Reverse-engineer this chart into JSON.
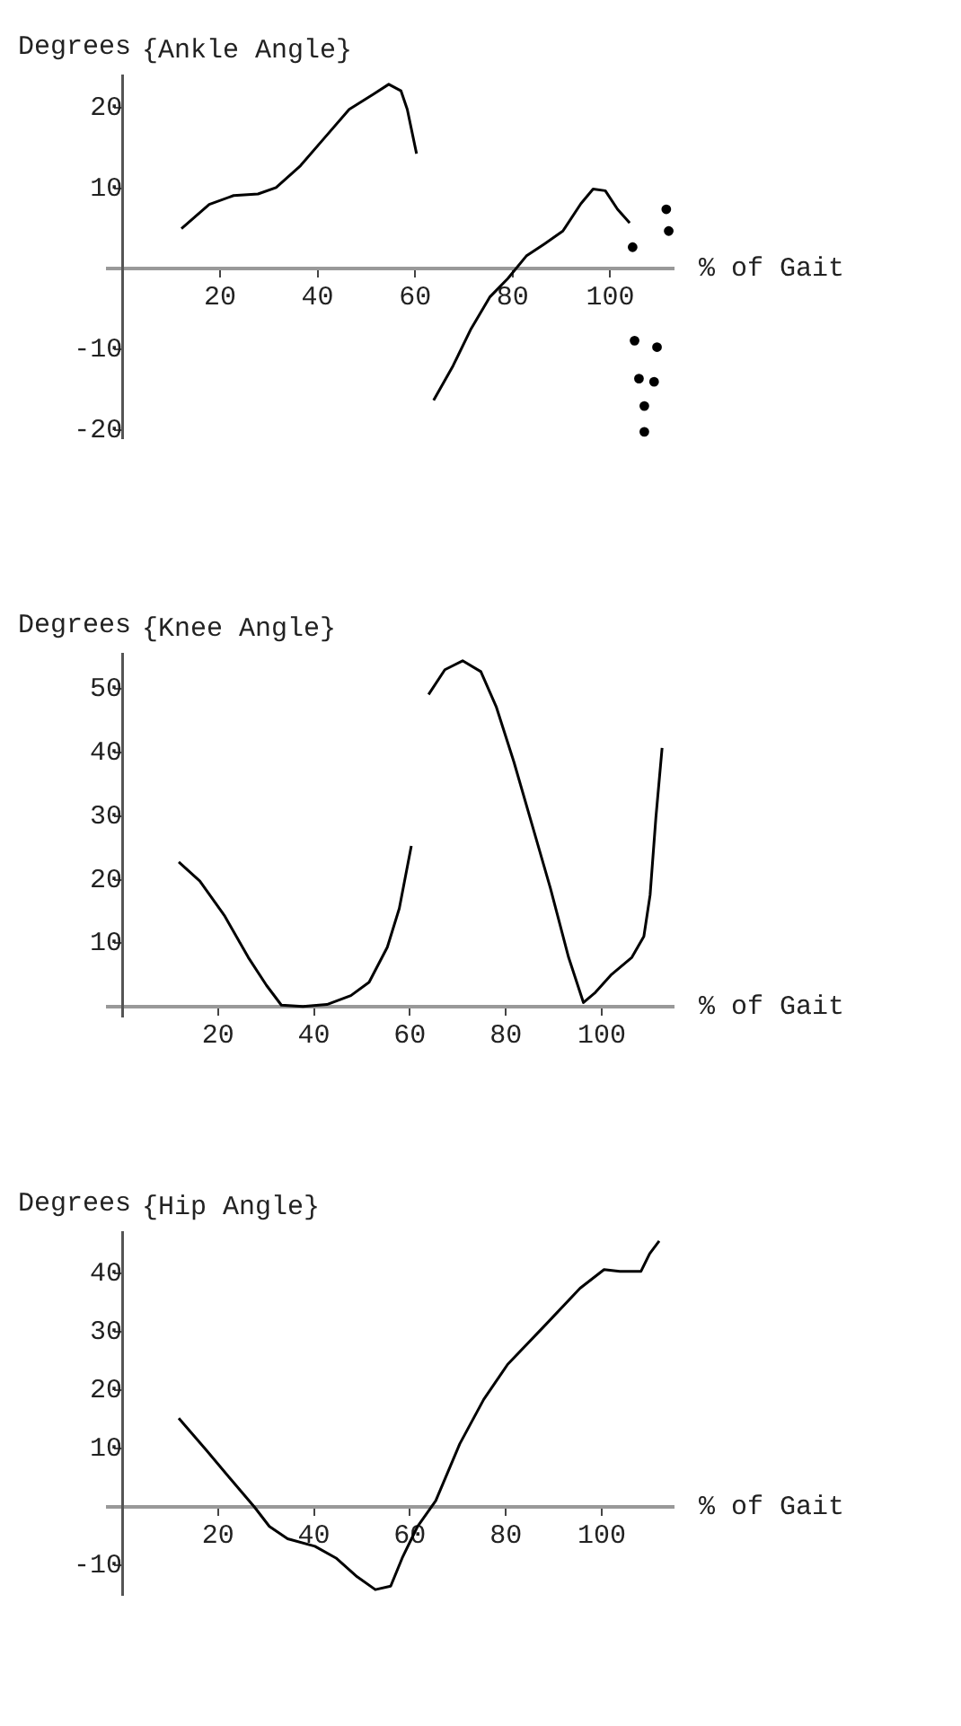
{
  "chart_data": [
    {
      "type": "line",
      "title": "{Ankle Angle}",
      "ylabel": "Degrees",
      "xlabel": "% of Gait",
      "xlim": [
        -3,
        113
      ],
      "ylim": [
        -21,
        24
      ],
      "xticks": [
        20,
        40,
        60,
        80,
        100
      ],
      "yticks": [
        -20,
        -10,
        10,
        20
      ],
      "marker": "none",
      "series": [
        {
          "color": "#000000",
          "x": [
            12.1,
            17.8,
            22.8,
            27.8,
            31.5,
            36.5,
            41.5,
            46.5,
            51.5,
            54.6,
            57.1,
            58.4,
            60.3
          ],
          "values": [
            5.0,
            8.0,
            9.1,
            9.3,
            10.1,
            12.8,
            16.3,
            19.8,
            21.7,
            22.9,
            22.1,
            19.8,
            14.3
          ]
        },
        {
          "color": "#000000",
          "x": [
            63.8,
            67.8,
            71.5,
            75.3,
            79,
            82.8,
            86.5,
            90.3,
            94,
            96.5,
            99,
            101.5,
            104
          ],
          "values": [
            -16.3,
            -12,
            -7.4,
            -3.5,
            -1.2,
            1.6,
            3.1,
            4.7,
            8.1,
            9.9,
            9.7,
            7.4,
            5.7
          ]
        },
        {
          "type": "scatter",
          "marker": "circle",
          "color": "#000000",
          "x": [
            104.6,
            111.5,
            112,
            105,
            109.6,
            105.9,
            109,
            107,
            107
          ],
          "values": [
            2.7,
            7.4,
            4.7,
            -8.9,
            -9.7,
            -13.6,
            -14,
            -17,
            -20.2
          ]
        }
      ]
    },
    {
      "type": "line",
      "title": "{Knee Angle}",
      "ylabel": "Degrees",
      "xlabel": "% of Gait",
      "xlim": [
        -3,
        115
      ],
      "ylim": [
        -1.5,
        55.5
      ],
      "xticks": [
        20,
        40,
        60,
        80,
        100
      ],
      "yticks": [
        10,
        20,
        30,
        40,
        50
      ],
      "marker": "none",
      "series": [
        {
          "color": "#000000",
          "x": [
            11.8,
            16.2,
            21.3,
            26.3,
            30.1,
            33.2,
            37.7,
            42.7,
            47.7,
            51.5,
            55.3,
            57.8,
            60.3
          ],
          "values": [
            22.8,
            19.8,
            14.4,
            7.8,
            3.4,
            0.3,
            0.1,
            0.4,
            1.8,
            3.9,
            9.4,
            15.5,
            25.3
          ]
        },
        {
          "color": "#000000",
          "x": [
            63.9,
            67.3,
            71,
            74.8,
            78,
            81.7,
            85.5,
            89.3,
            93.1,
            96.2,
            98.7,
            101.9,
            106.3,
            108.8,
            110.1,
            111.3,
            112.6
          ],
          "values": [
            49.1,
            53,
            54.4,
            52.7,
            47.2,
            38.5,
            28.6,
            18.7,
            7.8,
            0.7,
            2.3,
            5,
            7.8,
            11.1,
            17.6,
            29.7,
            40.7
          ]
        }
      ]
    },
    {
      "type": "line",
      "title": "{Hip Angle}",
      "ylabel": "Degrees",
      "xlabel": "% of Gait",
      "xlim": [
        -3,
        115
      ],
      "ylim": [
        -15,
        47
      ],
      "xticks": [
        20,
        40,
        60,
        80,
        100
      ],
      "yticks": [
        -10,
        10,
        20,
        30,
        40
      ],
      "marker": "none",
      "series": [
        {
          "color": "#000000",
          "x": [
            11.8,
            17.5,
            22.5,
            27.6,
            30.7,
            34.5,
            40.2,
            44.6,
            49,
            52.8,
            56,
            58.4,
            61.6,
            65.4,
            70.4,
            75.4,
            80.4,
            88,
            95.5,
            100.5,
            103.8,
            108.2,
            110,
            112
          ],
          "values": [
            15.2,
            9.8,
            4.9,
            0,
            -3.3,
            -5.4,
            -6.7,
            -8.7,
            -11.9,
            -14.1,
            -13.5,
            -8.7,
            -3.3,
            1.1,
            10.8,
            18.4,
            24.4,
            30.9,
            37.4,
            40.6,
            40.3,
            40.3,
            43.3,
            45.5
          ]
        }
      ]
    }
  ]
}
